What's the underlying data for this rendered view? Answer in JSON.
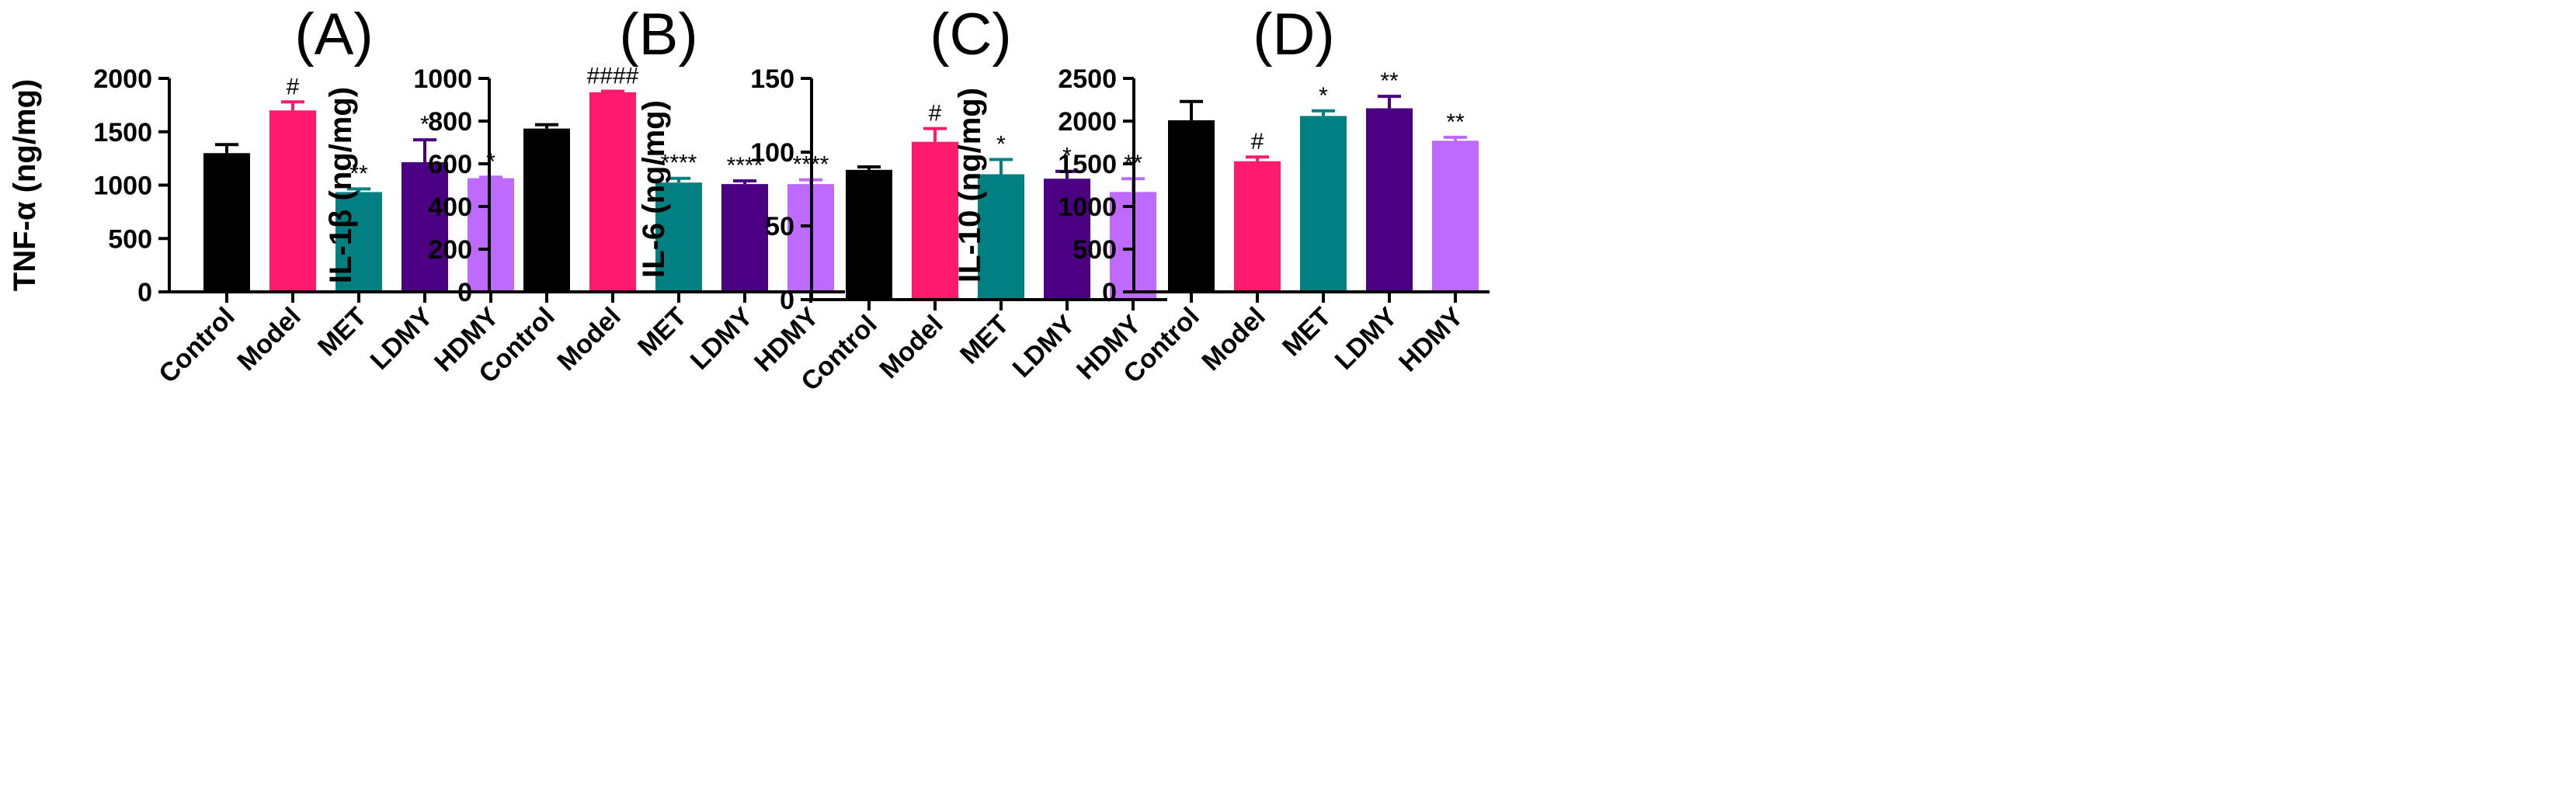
{
  "colors": {
    "Control": "#000000",
    "Model": "#ff1a6e",
    "MET": "#008080",
    "LDMY": "#4b0082",
    "HDMY": "#bf6aff"
  },
  "chart_data": [
    {
      "type": "bar",
      "title": "(A)",
      "ylabel": "TNF-α (ng/mg)",
      "categories": [
        "Control",
        "Model",
        "MET",
        "LDMY",
        "HDMY"
      ],
      "values": [
        1300,
        1700,
        935,
        1215,
        1065
      ],
      "errors": [
        80,
        80,
        30,
        210,
        10
      ],
      "annotations": [
        "",
        "#",
        "**",
        "*",
        "*"
      ],
      "ylim": [
        0,
        2000
      ],
      "yticks": [
        0,
        500,
        1000,
        1500,
        2000
      ]
    },
    {
      "type": "bar",
      "title": "(B)",
      "ylabel": "IL-1β (ng/mg)",
      "categories": [
        "Control",
        "Model",
        "MET",
        "LDMY",
        "HDMY"
      ],
      "values": [
        765,
        935,
        512,
        505,
        505
      ],
      "errors": [
        18,
        5,
        20,
        15,
        20
      ],
      "annotations": [
        "",
        "####",
        "****",
        "****",
        "****"
      ],
      "ylim": [
        0,
        1000
      ],
      "yticks": [
        0,
        200,
        400,
        600,
        800,
        1000
      ]
    },
    {
      "type": "bar",
      "title": "(C)",
      "ylabel": "IL-6 (ng/mg)",
      "categories": [
        "Control",
        "Model",
        "MET",
        "LDMY",
        "HDMY"
      ],
      "values": [
        88,
        107,
        85,
        82,
        73
      ],
      "errors": [
        2,
        9,
        10,
        5,
        9
      ],
      "annotations": [
        "",
        "#",
        "*",
        "*",
        "**"
      ],
      "ylim": [
        0,
        150
      ],
      "yticks": [
        0,
        50,
        100,
        150
      ]
    },
    {
      "type": "bar",
      "title": "(D)",
      "ylabel": "IL-10 (ng/mg)",
      "categories": [
        "Control",
        "Model",
        "MET",
        "LDMY",
        "HDMY"
      ],
      "values": [
        2010,
        1530,
        2060,
        2150,
        1770
      ],
      "errors": [
        220,
        50,
        60,
        140,
        40
      ],
      "annotations": [
        "",
        "#",
        "*",
        "**",
        "**"
      ],
      "ylim": [
        0,
        2500
      ],
      "yticks": [
        0,
        500,
        1000,
        1500,
        2000,
        2500
      ]
    }
  ]
}
